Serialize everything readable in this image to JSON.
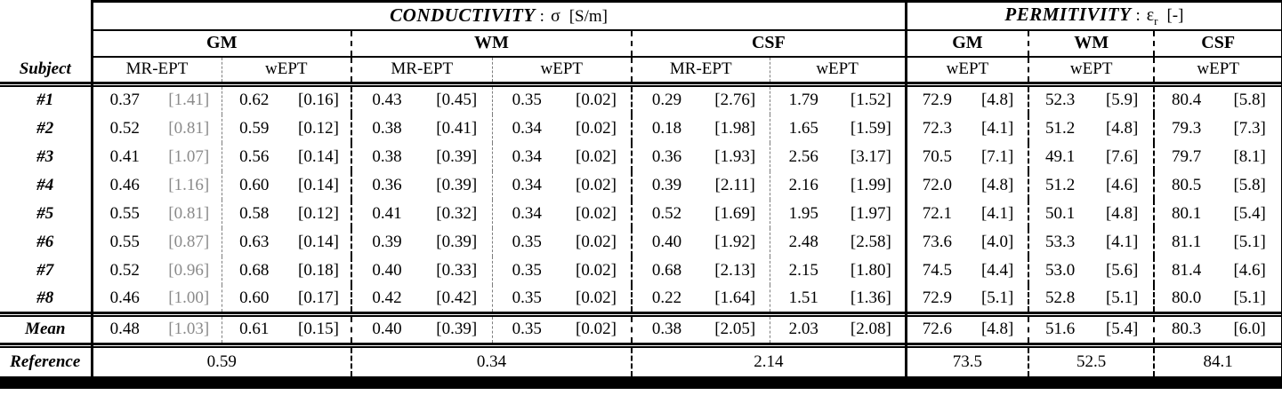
{
  "table": {
    "corner_label": "Subject",
    "sections": {
      "conductivity": {
        "title": "CONDUCTIVITY",
        "separator": ":",
        "symbol": "σ",
        "unit": "[S/m]",
        "groups": [
          {
            "label": "GM"
          },
          {
            "label": "WM"
          },
          {
            "label": "CSF"
          }
        ],
        "method_headers": [
          "MR-EPT",
          "wEPT",
          "MR-EPT",
          "wEPT",
          "MR-EPT",
          "wEPT"
        ]
      },
      "permittivity": {
        "title": "PERMITIVITY",
        "separator": ":",
        "symbol": "ε",
        "symbol_subscript": "r",
        "unit": "[-]",
        "groups": [
          {
            "label": "GM"
          },
          {
            "label": "WM"
          },
          {
            "label": "CSF"
          }
        ],
        "method_headers": [
          "wEPT",
          "wEPT",
          "wEPT"
        ]
      }
    },
    "rows": [
      {
        "label": "#1",
        "values": [
          "0.37",
          "[1.41]",
          "0.62",
          "[0.16]",
          "0.43",
          "[0.45]",
          "0.35",
          "[0.02]",
          "0.29",
          "[2.76]",
          "1.79",
          "[1.52]",
          "72.9",
          "[4.8]",
          "52.3",
          "[5.9]",
          "80.4",
          "[5.8]"
        ]
      },
      {
        "label": "#2",
        "values": [
          "0.52",
          "[0.81]",
          "0.59",
          "[0.12]",
          "0.38",
          "[0.41]",
          "0.34",
          "[0.02]",
          "0.18",
          "[1.98]",
          "1.65",
          "[1.59]",
          "72.3",
          "[4.1]",
          "51.2",
          "[4.8]",
          "79.3",
          "[7.3]"
        ]
      },
      {
        "label": "#3",
        "values": [
          "0.41",
          "[1.07]",
          "0.56",
          "[0.14]",
          "0.38",
          "[0.39]",
          "0.34",
          "[0.02]",
          "0.36",
          "[1.93]",
          "2.56",
          "[3.17]",
          "70.5",
          "[7.1]",
          "49.1",
          "[7.6]",
          "79.7",
          "[8.1]"
        ]
      },
      {
        "label": "#4",
        "values": [
          "0.46",
          "[1.16]",
          "0.60",
          "[0.14]",
          "0.36",
          "[0.39]",
          "0.34",
          "[0.02]",
          "0.39",
          "[2.11]",
          "2.16",
          "[1.99]",
          "72.0",
          "[4.8]",
          "51.2",
          "[4.6]",
          "80.5",
          "[5.8]"
        ]
      },
      {
        "label": "#5",
        "values": [
          "0.55",
          "[0.81]",
          "0.58",
          "[0.12]",
          "0.41",
          "[0.32]",
          "0.34",
          "[0.02]",
          "0.52",
          "[1.69]",
          "1.95",
          "[1.97]",
          "72.1",
          "[4.1]",
          "50.1",
          "[4.8]",
          "80.1",
          "[5.4]"
        ]
      },
      {
        "label": "#6",
        "values": [
          "0.55",
          "[0.87]",
          "0.63",
          "[0.14]",
          "0.39",
          "[0.39]",
          "0.35",
          "[0.02]",
          "0.40",
          "[1.92]",
          "2.48",
          "[2.58]",
          "73.6",
          "[4.0]",
          "53.3",
          "[4.1]",
          "81.1",
          "[5.1]"
        ]
      },
      {
        "label": "#7",
        "values": [
          "0.52",
          "[0.96]",
          "0.68",
          "[0.18]",
          "0.40",
          "[0.33]",
          "0.35",
          "[0.02]",
          "0.68",
          "[2.13]",
          "2.15",
          "[1.80]",
          "74.5",
          "[4.4]",
          "53.0",
          "[5.6]",
          "81.4",
          "[4.6]"
        ]
      },
      {
        "label": "#8",
        "values": [
          "0.46",
          "[1.00]",
          "0.60",
          "[0.17]",
          "0.42",
          "[0.42]",
          "0.35",
          "[0.02]",
          "0.22",
          "[1.64]",
          "1.51",
          "[1.36]",
          "72.9",
          "[5.1]",
          "52.8",
          "[5.1]",
          "80.0",
          "[5.1]"
        ]
      },
      {
        "label": "Mean",
        "values": [
          "0.48",
          "[1.03]",
          "0.61",
          "[0.15]",
          "0.40",
          "[0.39]",
          "0.35",
          "[0.02]",
          "0.38",
          "[2.05]",
          "2.03",
          "[2.08]",
          "72.6",
          "[4.8]",
          "51.6",
          "[5.4]",
          "80.3",
          "[6.0]"
        ]
      }
    ],
    "reference": {
      "label": "Reference",
      "values": [
        "0.59",
        "0.34",
        "2.14",
        "73.5",
        "52.5",
        "84.1"
      ]
    },
    "colors": {
      "std_gray": "#8a8a8a",
      "line_black": "#000000"
    }
  }
}
